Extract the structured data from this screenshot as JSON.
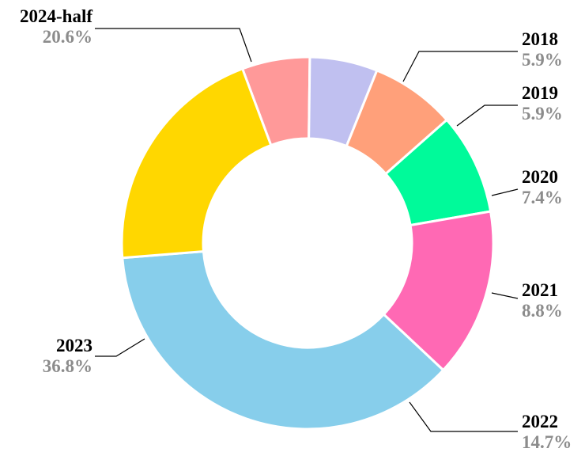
{
  "chart_data": {
    "type": "pie",
    "style": "donut",
    "title": "",
    "start_angle_deg": -20.5,
    "direction": "clockwise",
    "categories": [
      "2018",
      "2019",
      "2020",
      "2021",
      "2022",
      "2023",
      "2024-half"
    ],
    "values": [
      5.9,
      5.9,
      7.4,
      8.8,
      14.7,
      36.8,
      20.6
    ],
    "value_labels": [
      "5.9%",
      "5.9%",
      "7.4%",
      "8.8%",
      "14.7%",
      "36.8%",
      "20.6%"
    ],
    "colors": [
      "#FF9999",
      "#C0C0F0",
      "#FFA07A",
      "#00FA9A",
      "#FF69B4",
      "#87CEEB",
      "#FFD700"
    ],
    "label_sides": [
      "right",
      "right",
      "right",
      "right",
      "right",
      "left",
      "left"
    ],
    "legend": "none"
  }
}
